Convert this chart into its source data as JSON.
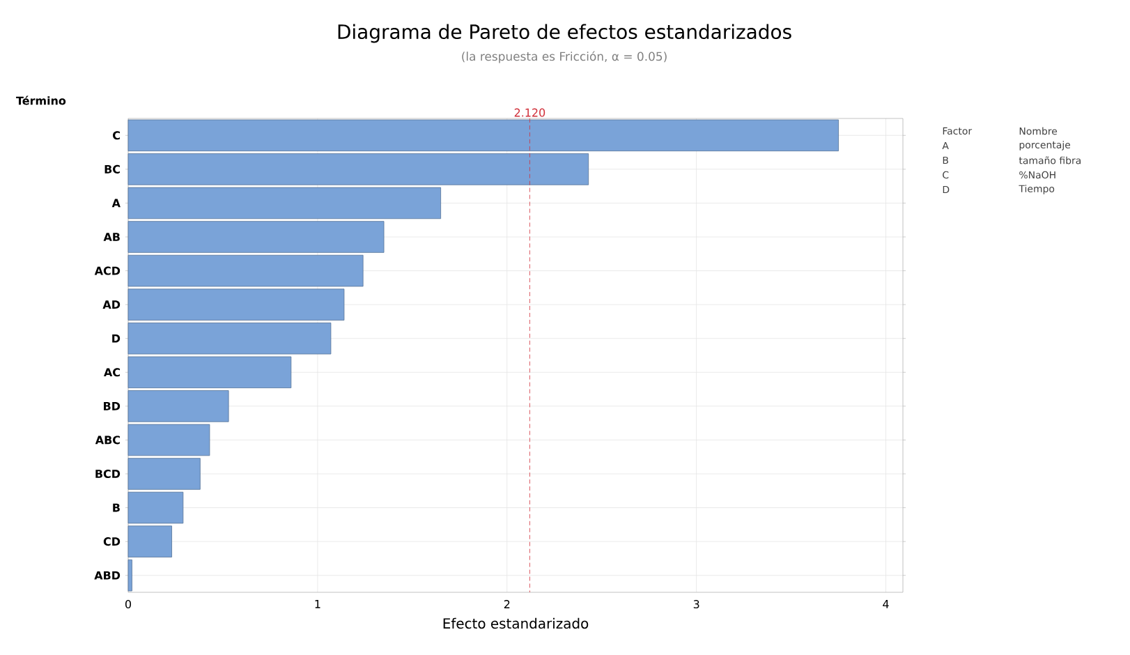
{
  "chart_data": {
    "type": "bar",
    "orientation": "horizontal",
    "title": "Diagrama de Pareto de efectos estandarizados",
    "subtitle": "(la respuesta es Fricción, α = 0.05)",
    "xlabel": "Efecto estandarizado",
    "categories": [
      "C",
      "BC",
      "A",
      "AB",
      "ACD",
      "AD",
      "D",
      "AC",
      "BD",
      "ABC",
      "BCD",
      "B",
      "CD",
      "ABD"
    ],
    "values": [
      3.75,
      2.43,
      1.65,
      1.35,
      1.24,
      1.14,
      1.07,
      0.86,
      0.53,
      0.43,
      0.38,
      0.29,
      0.23,
      0.02
    ],
    "color": "#7aa3d8",
    "xlim": [
      0,
      4.09
    ],
    "xticks": [
      0,
      1,
      2,
      3,
      4
    ],
    "grid": true,
    "ref_lines": [
      {
        "axis": "x",
        "value": 2.12,
        "label": "2.120",
        "color": "#d0303a",
        "line_style": "dashed"
      }
    ],
    "annotations": [
      "Término",
      "Factor",
      "Nombre",
      "A",
      "porcentaje",
      "B",
      "tamaño fibra",
      "C",
      "%NaOH",
      "D",
      "Tiempo"
    ]
  }
}
